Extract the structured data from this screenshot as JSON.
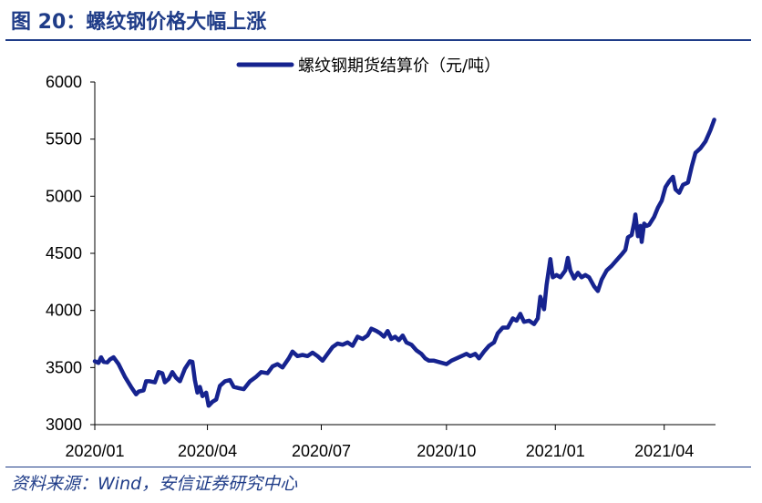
{
  "figure": {
    "title": "图 20：螺纹钢价格大幅上涨",
    "source": "资料来源：Wind，安信证券研究中心"
  },
  "colors": {
    "series": "#16238F",
    "title": "#1F3C88",
    "axis": "#000000"
  },
  "chart_data": {
    "type": "line",
    "title": "",
    "xlabel": "",
    "ylabel": "",
    "ylim": [
      3000,
      6000
    ],
    "yticks": [
      3000,
      3500,
      4000,
      4500,
      5000,
      5500,
      6000
    ],
    "xlim": [
      "2020-01-02",
      "2021-05-12"
    ],
    "xticks": [
      {
        "date": "2020-01-02",
        "label": "2020/01"
      },
      {
        "date": "2020-04-01",
        "label": "2020/04"
      },
      {
        "date": "2020-07-01",
        "label": "2020/07"
      },
      {
        "date": "2020-10-09",
        "label": "2020/10"
      },
      {
        "date": "2021-01-04",
        "label": "2021/01"
      },
      {
        "date": "2021-04-01",
        "label": "2021/04"
      }
    ],
    "legend": {
      "position": "top-center"
    },
    "series": [
      {
        "name": "螺纹钢期货结算价（元/吨）",
        "points": [
          [
            "2020-01-02",
            3555
          ],
          [
            "2020-01-05",
            3540
          ],
          [
            "2020-01-07",
            3590
          ],
          [
            "2020-01-09",
            3550
          ],
          [
            "2020-01-12",
            3545
          ],
          [
            "2020-01-14",
            3570
          ],
          [
            "2020-01-17",
            3590
          ],
          [
            "2020-01-21",
            3530
          ],
          [
            "2020-01-26",
            3420
          ],
          [
            "2020-01-31",
            3330
          ],
          [
            "2020-02-04",
            3265
          ],
          [
            "2020-02-06",
            3290
          ],
          [
            "2020-02-10",
            3300
          ],
          [
            "2020-02-12",
            3380
          ],
          [
            "2020-02-15",
            3380
          ],
          [
            "2020-02-19",
            3370
          ],
          [
            "2020-02-22",
            3460
          ],
          [
            "2020-02-25",
            3450
          ],
          [
            "2020-02-27",
            3370
          ],
          [
            "2020-03-01",
            3400
          ],
          [
            "2020-03-04",
            3460
          ],
          [
            "2020-03-07",
            3410
          ],
          [
            "2020-03-10",
            3380
          ],
          [
            "2020-03-14",
            3490
          ],
          [
            "2020-03-18",
            3555
          ],
          [
            "2020-03-20",
            3550
          ],
          [
            "2020-03-22",
            3390
          ],
          [
            "2020-03-24",
            3280
          ],
          [
            "2020-03-26",
            3330
          ],
          [
            "2020-03-28",
            3250
          ],
          [
            "2020-03-31",
            3280
          ],
          [
            "2020-04-02",
            3165
          ],
          [
            "2020-04-05",
            3200
          ],
          [
            "2020-04-08",
            3220
          ],
          [
            "2020-04-11",
            3340
          ],
          [
            "2020-04-15",
            3380
          ],
          [
            "2020-04-19",
            3390
          ],
          [
            "2020-04-22",
            3330
          ],
          [
            "2020-04-26",
            3320
          ],
          [
            "2020-04-30",
            3310
          ],
          [
            "2020-05-05",
            3380
          ],
          [
            "2020-05-10",
            3420
          ],
          [
            "2020-05-14",
            3460
          ],
          [
            "2020-05-19",
            3450
          ],
          [
            "2020-05-23",
            3510
          ],
          [
            "2020-05-27",
            3530
          ],
          [
            "2020-05-31",
            3500
          ],
          [
            "2020-06-05",
            3580
          ],
          [
            "2020-06-08",
            3640
          ],
          [
            "2020-06-12",
            3600
          ],
          [
            "2020-06-16",
            3610
          ],
          [
            "2020-06-20",
            3600
          ],
          [
            "2020-06-24",
            3630
          ],
          [
            "2020-06-28",
            3600
          ],
          [
            "2020-07-02",
            3560
          ],
          [
            "2020-07-06",
            3620
          ],
          [
            "2020-07-10",
            3680
          ],
          [
            "2020-07-14",
            3710
          ],
          [
            "2020-07-18",
            3700
          ],
          [
            "2020-07-22",
            3720
          ],
          [
            "2020-07-26",
            3690
          ],
          [
            "2020-07-30",
            3770
          ],
          [
            "2020-08-03",
            3750
          ],
          [
            "2020-08-07",
            3780
          ],
          [
            "2020-08-10",
            3840
          ],
          [
            "2020-08-14",
            3820
          ],
          [
            "2020-08-17",
            3800
          ],
          [
            "2020-08-20",
            3770
          ],
          [
            "2020-08-23",
            3820
          ],
          [
            "2020-08-26",
            3750
          ],
          [
            "2020-08-29",
            3770
          ],
          [
            "2020-09-01",
            3740
          ],
          [
            "2020-09-04",
            3780
          ],
          [
            "2020-09-07",
            3720
          ],
          [
            "2020-09-11",
            3700
          ],
          [
            "2020-09-15",
            3650
          ],
          [
            "2020-09-19",
            3620
          ],
          [
            "2020-09-22",
            3580
          ],
          [
            "2020-09-25",
            3560
          ],
          [
            "2020-09-29",
            3560
          ],
          [
            "2020-10-09",
            3530
          ],
          [
            "2020-10-13",
            3560
          ],
          [
            "2020-10-17",
            3580
          ],
          [
            "2020-10-21",
            3600
          ],
          [
            "2020-10-25",
            3620
          ],
          [
            "2020-10-28",
            3600
          ],
          [
            "2020-11-01",
            3620
          ],
          [
            "2020-11-04",
            3580
          ],
          [
            "2020-11-08",
            3640
          ],
          [
            "2020-11-12",
            3690
          ],
          [
            "2020-11-16",
            3720
          ],
          [
            "2020-11-19",
            3800
          ],
          [
            "2020-11-23",
            3850
          ],
          [
            "2020-11-27",
            3850
          ],
          [
            "2020-12-01",
            3930
          ],
          [
            "2020-12-04",
            3910
          ],
          [
            "2020-12-07",
            3970
          ],
          [
            "2020-12-10",
            3900
          ],
          [
            "2020-12-14",
            3910
          ],
          [
            "2020-12-18",
            3880
          ],
          [
            "2020-12-21",
            3930
          ],
          [
            "2020-12-23",
            4120
          ],
          [
            "2020-12-26",
            4010
          ],
          [
            "2020-12-28",
            4220
          ],
          [
            "2020-12-31",
            4450
          ],
          [
            "2021-01-02",
            4290
          ],
          [
            "2021-01-05",
            4310
          ],
          [
            "2021-01-08",
            4290
          ],
          [
            "2021-01-12",
            4350
          ],
          [
            "2021-01-14",
            4460
          ],
          [
            "2021-01-16",
            4350
          ],
          [
            "2021-01-19",
            4280
          ],
          [
            "2021-01-22",
            4330
          ],
          [
            "2021-01-25",
            4290
          ],
          [
            "2021-01-28",
            4310
          ],
          [
            "2021-01-31",
            4290
          ],
          [
            "2021-02-04",
            4210
          ],
          [
            "2021-02-07",
            4170
          ],
          [
            "2021-02-10",
            4270
          ],
          [
            "2021-02-14",
            4350
          ],
          [
            "2021-02-18",
            4390
          ],
          [
            "2021-02-22",
            4440
          ],
          [
            "2021-02-26",
            4490
          ],
          [
            "2021-03-01",
            4530
          ],
          [
            "2021-03-03",
            4640
          ],
          [
            "2021-03-06",
            4660
          ],
          [
            "2021-03-08",
            4770
          ],
          [
            "2021-03-09",
            4840
          ],
          [
            "2021-03-11",
            4650
          ],
          [
            "2021-03-13",
            4740
          ],
          [
            "2021-03-14",
            4600
          ],
          [
            "2021-03-16",
            4760
          ],
          [
            "2021-03-18",
            4740
          ],
          [
            "2021-03-20",
            4750
          ],
          [
            "2021-03-24",
            4820
          ],
          [
            "2021-03-27",
            4900
          ],
          [
            "2021-03-30",
            4960
          ],
          [
            "2021-04-02",
            5080
          ],
          [
            "2021-04-05",
            5130
          ],
          [
            "2021-04-08",
            5170
          ],
          [
            "2021-04-10",
            5060
          ],
          [
            "2021-04-13",
            5030
          ],
          [
            "2021-04-16",
            5100
          ],
          [
            "2021-04-20",
            5120
          ],
          [
            "2021-04-23",
            5260
          ],
          [
            "2021-04-26",
            5380
          ],
          [
            "2021-04-30",
            5420
          ],
          [
            "2021-05-04",
            5480
          ],
          [
            "2021-05-08",
            5580
          ],
          [
            "2021-05-11",
            5670
          ]
        ]
      }
    ]
  }
}
